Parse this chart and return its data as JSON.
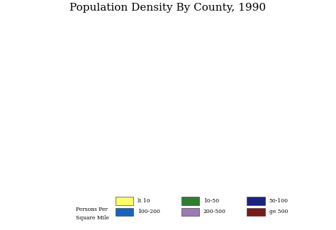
{
  "title": "Population Density By County, 1990",
  "title_fontsize": 11,
  "background_color": "#ffffff",
  "legend_label1": "Persons Per",
  "legend_label2": "Square Mile",
  "legend_row1": [
    {
      "label": "lt 10",
      "color": "#ffff66"
    },
    {
      "label": "10-50",
      "color": "#2e7d32"
    },
    {
      "label": "50-100",
      "color": "#1a237e"
    }
  ],
  "legend_row2": [
    {
      "label": "100-200",
      "color": "#1565c0"
    },
    {
      "label": "200-500",
      "color": "#9c7bb5"
    },
    {
      "label": "ge 500",
      "color": "#7b1a1a"
    }
  ],
  "colors": {
    "lt10": "#ffff66",
    "10_50": "#2e7d32",
    "50_100": "#1a237e",
    "100_200": "#1565c0",
    "200_500": "#9c7bb5",
    "ge500": "#7b1a1a"
  },
  "fig_width": 4.74,
  "fig_height": 3.25,
  "dpi": 100
}
